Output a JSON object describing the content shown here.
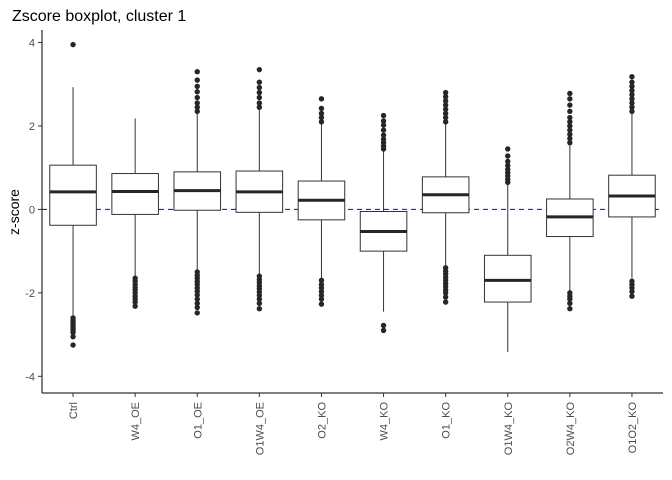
{
  "chart_data": {
    "type": "boxplot",
    "title": "Zscore boxplot, cluster 1",
    "xlabel": "",
    "ylabel": "z-score",
    "ylim": [
      -4.4,
      4.3
    ],
    "yticks": [
      -4,
      -2,
      0,
      2,
      4
    ],
    "reference_line": {
      "y": 0,
      "style": "dashed",
      "color": "#0000ff"
    },
    "grid": false,
    "categories": [
      "Ctrl",
      "W4_OE",
      "O1_OE",
      "O1W4_OE",
      "O2_KO",
      "W4_KO",
      "O1_KO",
      "O1W4_KO",
      "O2W4_KO",
      "O1O2_KO"
    ],
    "boxes": [
      {
        "q1": -0.38,
        "median": 0.42,
        "q3": 1.06,
        "whisker_low": -2.55,
        "whisker_high": 2.93,
        "outliers": [
          3.95,
          -2.6,
          -2.65,
          -2.7,
          -2.75,
          -2.8,
          -2.85,
          -2.9,
          -2.95,
          -3.05,
          -3.25
        ]
      },
      {
        "q1": -0.12,
        "median": 0.43,
        "q3": 0.86,
        "whisker_low": -1.6,
        "whisker_high": 2.18,
        "outliers": [
          -1.65,
          -1.72,
          -1.8,
          -1.87,
          -1.93,
          -2.0,
          -2.08,
          -2.15,
          -2.22,
          -2.32
        ]
      },
      {
        "q1": -0.02,
        "median": 0.45,
        "q3": 0.9,
        "whisker_low": -1.45,
        "whisker_high": 2.3,
        "outliers": [
          2.35,
          2.45,
          2.55,
          2.68,
          2.82,
          2.95,
          3.1,
          3.3,
          -1.5,
          -1.58,
          -1.65,
          -1.73,
          -1.8,
          -1.88,
          -1.96,
          -2.05,
          -2.15,
          -2.25,
          -2.35,
          -2.48
        ]
      },
      {
        "q1": -0.07,
        "median": 0.42,
        "q3": 0.92,
        "whisker_low": -1.55,
        "whisker_high": 2.4,
        "outliers": [
          2.45,
          2.55,
          2.68,
          2.8,
          2.92,
          3.05,
          3.35,
          -1.6,
          -1.68,
          -1.75,
          -1.83,
          -1.9,
          -1.98,
          -2.06,
          -2.15,
          -2.25,
          -2.38
        ]
      },
      {
        "q1": -0.25,
        "median": 0.22,
        "q3": 0.68,
        "whisker_low": -1.65,
        "whisker_high": 2.05,
        "outliers": [
          2.1,
          2.2,
          2.3,
          2.42,
          2.65,
          -1.7,
          -1.8,
          -1.88,
          -1.97,
          -2.06,
          -2.15,
          -2.27
        ]
      },
      {
        "q1": -1.0,
        "median": -0.53,
        "q3": -0.05,
        "whisker_low": -2.45,
        "whisker_high": 1.4,
        "outliers": [
          1.45,
          1.52,
          1.6,
          1.68,
          1.78,
          1.9,
          2.02,
          2.12,
          2.25,
          -2.78,
          -2.9
        ]
      },
      {
        "q1": -0.08,
        "median": 0.35,
        "q3": 0.78,
        "whisker_low": -1.35,
        "whisker_high": 2.05,
        "outliers": [
          2.1,
          2.2,
          2.3,
          2.4,
          2.5,
          2.6,
          2.7,
          2.8,
          -1.4,
          -1.48,
          -1.55,
          -1.63,
          -1.7,
          -1.78,
          -1.85,
          -1.93,
          -2.0,
          -2.1,
          -2.22
        ]
      },
      {
        "q1": -2.22,
        "median": -1.7,
        "q3": -1.1,
        "whisker_low": -3.42,
        "whisker_high": 0.6,
        "outliers": [
          0.65,
          0.72,
          0.8,
          0.88,
          0.96,
          1.05,
          1.15,
          1.28,
          1.45
        ]
      },
      {
        "q1": -0.65,
        "median": -0.18,
        "q3": 0.25,
        "whisker_low": -1.95,
        "whisker_high": 1.55,
        "outliers": [
          1.6,
          1.7,
          1.8,
          1.9,
          2.0,
          2.1,
          2.2,
          2.35,
          2.5,
          2.65,
          2.78,
          -2.0,
          -2.08,
          -2.15,
          -2.25,
          -2.38
        ]
      },
      {
        "q1": -0.18,
        "median": 0.32,
        "q3": 0.82,
        "whisker_low": -1.65,
        "whisker_high": 2.3,
        "outliers": [
          2.35,
          2.45,
          2.55,
          2.65,
          2.75,
          2.85,
          2.95,
          3.05,
          3.18,
          -1.72,
          -1.8,
          -1.88,
          -1.97,
          -2.08
        ]
      }
    ]
  }
}
